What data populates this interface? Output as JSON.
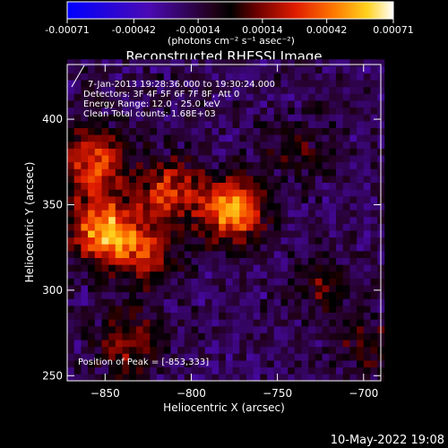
{
  "chart_data": {
    "type": "heatmap",
    "title": "Reconstructed RHESSI Image",
    "xlabel": "Heliocentric X (arcsec)",
    "ylabel": "Heliocentric Y (arcsec)",
    "xlim": [
      -872,
      -690
    ],
    "ylim": [
      247,
      432
    ],
    "xticks": [
      -850,
      -800,
      -750,
      -700
    ],
    "yticks": [
      250,
      300,
      350,
      400
    ],
    "colorbar": {
      "min": -0.00071,
      "max": 0.00071,
      "ticks": [
        -0.00071,
        -0.00042,
        -0.00014,
        0.00014,
        0.00042,
        0.00071
      ],
      "tick_labels": [
        "-0.00071",
        "-0.00042",
        "-0.00014",
        "0.00014",
        "0.00042",
        "0.00071"
      ],
      "unit_label": "(photons cm⁻² s⁻¹ asec⁻²)"
    },
    "annotations": [
      "7-Jan-2013 19:28:36.000 to 19:30:24.000",
      "Detectors: 3F 4F 5F 6F 7F 8F, Att 0",
      "Energy Range: 12.0 - 25.0 keV",
      "Clean     Total counts: 1.68E+03"
    ],
    "peak_label": "Position of Peak = [-853,333]",
    "peak_position": [
      -853,
      333
    ],
    "sources": [
      {
        "x": -778,
        "y": 345,
        "amplitude": 0.00068
      },
      {
        "x": -853,
        "y": 333,
        "amplitude": 0.00071
      },
      {
        "x": -858,
        "y": 372,
        "amplitude": 0.00055
      },
      {
        "x": -815,
        "y": 356,
        "amplitude": 0.00045
      },
      {
        "x": -830,
        "y": 320,
        "amplitude": 0.0004
      },
      {
        "x": -838,
        "y": 268,
        "amplitude": 0.00035
      },
      {
        "x": -725,
        "y": 300,
        "amplitude": 0.00022
      },
      {
        "x": -740,
        "y": 380,
        "amplitude": 0.00018
      },
      {
        "x": -700,
        "y": 265,
        "amplitude": 0.0002
      }
    ],
    "grid": false
  },
  "footer_timestamp": "10-May-2022 19:08"
}
